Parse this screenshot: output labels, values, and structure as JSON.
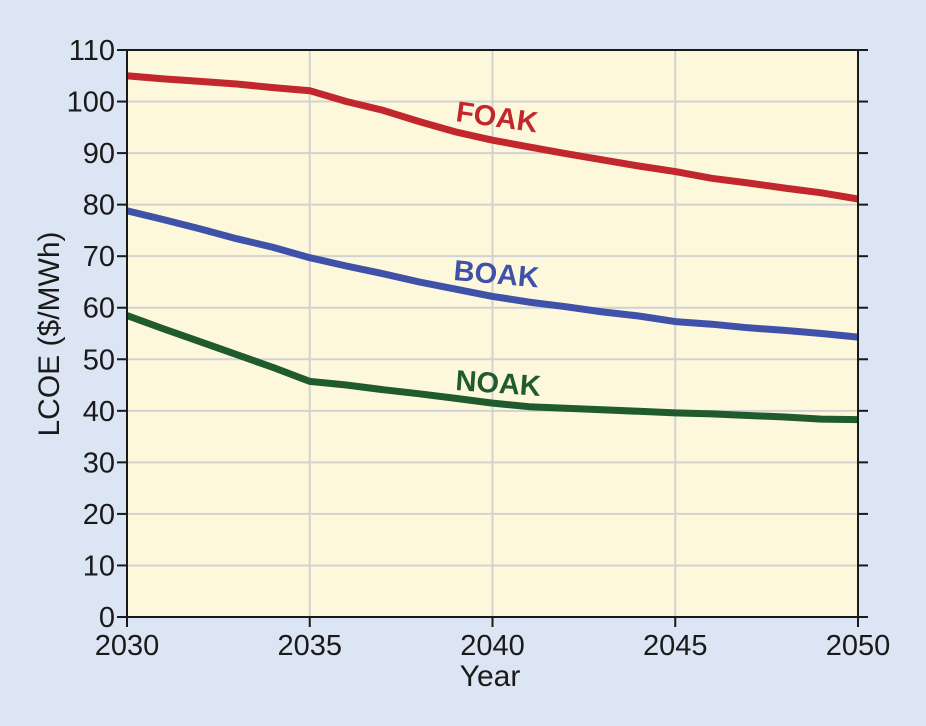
{
  "chart_data": {
    "type": "line",
    "title": "",
    "xlabel": "Year",
    "ylabel": "LCOE ($/MWh)",
    "xlim": [
      2030,
      2050
    ],
    "ylim": [
      0,
      110
    ],
    "x_ticks": [
      2030,
      2035,
      2040,
      2045,
      2050
    ],
    "y_ticks": [
      0,
      10,
      20,
      30,
      40,
      50,
      60,
      70,
      80,
      90,
      100,
      110
    ],
    "grid": true,
    "legend": "inline labels",
    "series": [
      {
        "name": "FOAK",
        "color": "#c1272d",
        "x": [
          2030,
          2031,
          2032,
          2033,
          2034,
          2035,
          2036,
          2037,
          2038,
          2039,
          2040,
          2041,
          2042,
          2043,
          2044,
          2045,
          2046,
          2047,
          2048,
          2049,
          2050
        ],
        "y": [
          105,
          104.4,
          103.9,
          103.4,
          102.7,
          102.1,
          100.0,
          98.3,
          96.1,
          94.1,
          92.5,
          91.2,
          89.9,
          88.7,
          87.5,
          86.4,
          85.1,
          84.2,
          83.2,
          82.3,
          81.1
        ]
      },
      {
        "name": "BOAK",
        "color": "#3f51a8",
        "x": [
          2030,
          2031,
          2032,
          2033,
          2034,
          2035,
          2036,
          2037,
          2038,
          2039,
          2040,
          2041,
          2042,
          2043,
          2044,
          2045,
          2046,
          2047,
          2048,
          2049,
          2050
        ],
        "y": [
          78.8,
          77.1,
          75.3,
          73.4,
          71.7,
          69.7,
          68.1,
          66.6,
          65.0,
          63.6,
          62.2,
          61.1,
          60.2,
          59.2,
          58.4,
          57.3,
          56.8,
          56.1,
          55.6,
          55.0,
          54.3
        ]
      },
      {
        "name": "NOAK",
        "color": "#1f5b2c",
        "x": [
          2030,
          2031,
          2032,
          2033,
          2034,
          2035,
          2036,
          2037,
          2038,
          2039,
          2040,
          2041,
          2042,
          2043,
          2044,
          2045,
          2046,
          2047,
          2048,
          2049,
          2050
        ],
        "y": [
          58.5,
          55.9,
          53.4,
          50.9,
          48.4,
          45.7,
          45.0,
          44.1,
          43.3,
          42.4,
          41.5,
          40.8,
          40.5,
          40.2,
          39.9,
          39.6,
          39.4,
          39.1,
          38.8,
          38.4,
          38.3
        ]
      }
    ]
  }
}
